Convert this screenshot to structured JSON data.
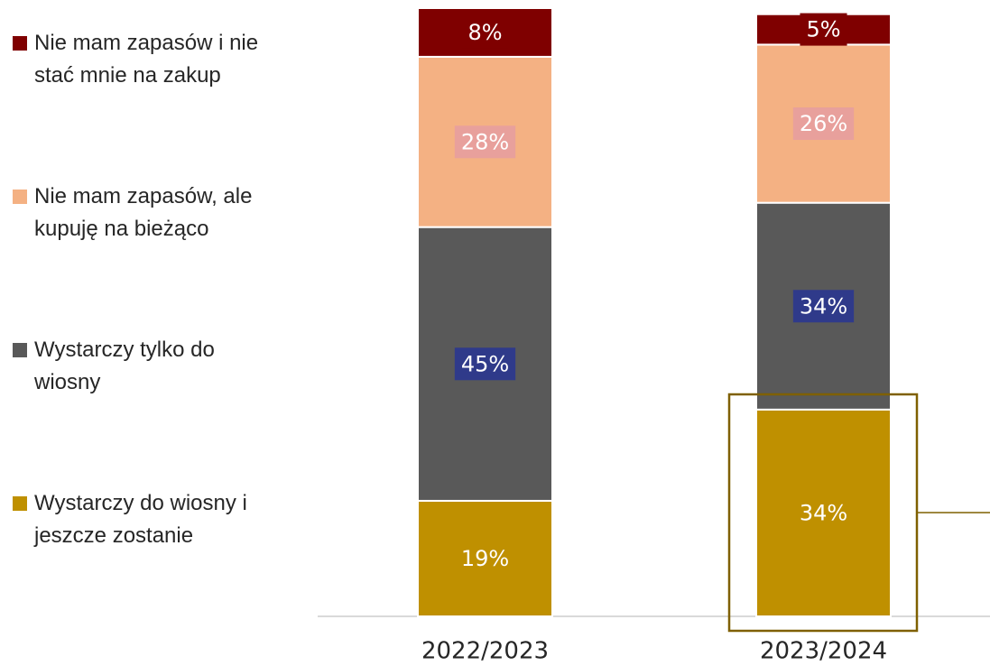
{
  "chart_data": {
    "type": "stacked_bar",
    "categories": [
      "2022/2023",
      "2023/2024"
    ],
    "ylim": [
      0,
      100
    ],
    "series": [
      {
        "name": "Wystarczy do wiosny i jeszcze zostanie",
        "color": "#BF9000",
        "values": [
          19,
          34
        ],
        "value_labels": [
          "19%",
          "34%"
        ]
      },
      {
        "name": "Wystarczy tylko do wiosny",
        "color": "#595959",
        "values": [
          45,
          34
        ],
        "value_labels": [
          "45%",
          "34%"
        ]
      },
      {
        "name": "Nie mam zapasów, ale kupuję na bieżąco",
        "color": "#F4B183",
        "values": [
          28,
          26
        ],
        "value_labels": [
          "28%",
          "26%"
        ]
      },
      {
        "name": "Nie mam zapasów i nie stać mnie na zakup",
        "color": "#7F0000",
        "values": [
          8,
          5
        ],
        "value_labels": [
          "8%",
          "5%"
        ]
      }
    ]
  }
}
